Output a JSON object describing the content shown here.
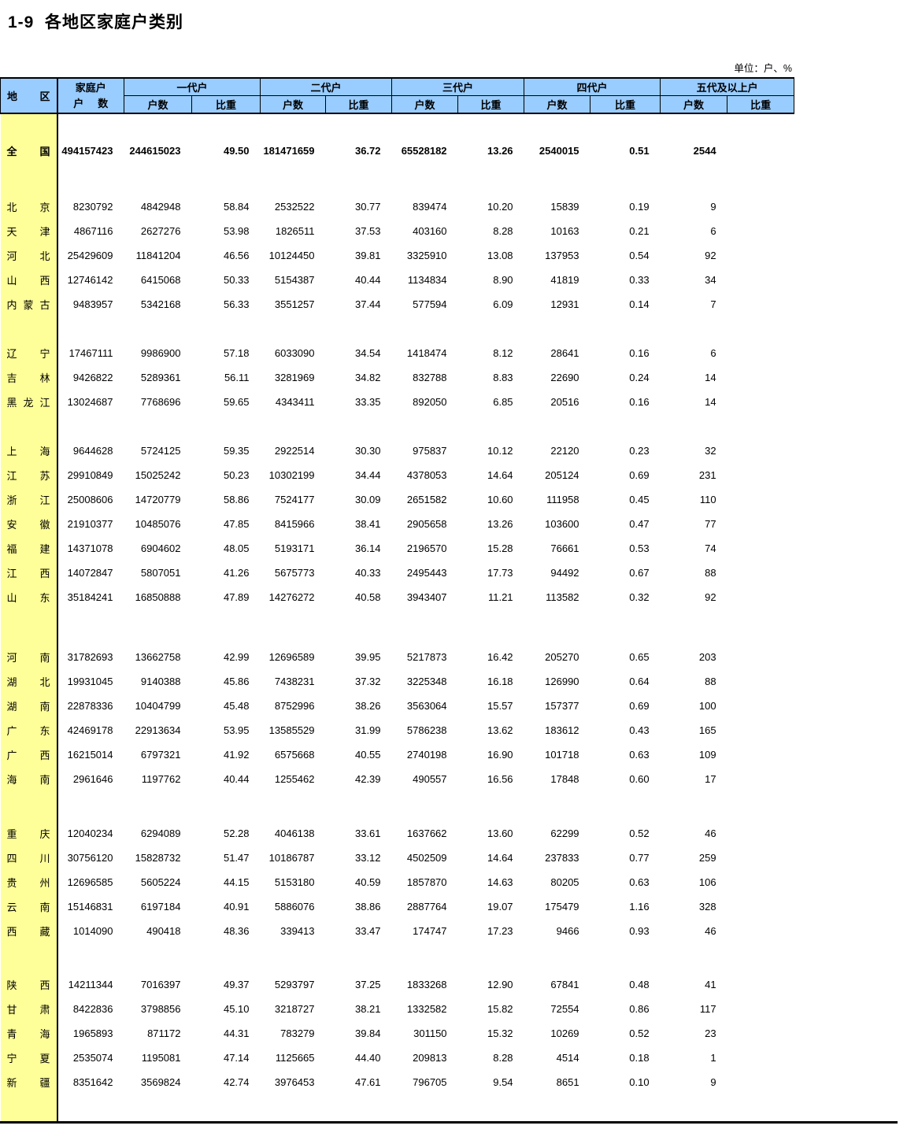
{
  "page": {
    "title": "1-9  各地区家庭户类别",
    "unit_note": "单位：户、%"
  },
  "table": {
    "header": {
      "region_label": "地区",
      "total_label_line1": "家庭户",
      "total_label_line2": "户数",
      "group_labels": [
        "一代户",
        "二代户",
        "三代户",
        "四代户",
        "五代及以上户"
      ],
      "count_label": "户数",
      "share_label": "比重"
    },
    "sections": [
      {
        "rows": [
          {
            "region": "全国",
            "emphasis": true,
            "values": [
              "494157423",
              "244615023",
              "49.50",
              "181471659",
              "36.72",
              "65528182",
              "13.26",
              "2540015",
              "0.51",
              "2544",
              ""
            ]
          }
        ]
      },
      {
        "rows": [
          {
            "region": "北京",
            "values": [
              "8230792",
              "4842948",
              "58.84",
              "2532522",
              "30.77",
              "839474",
              "10.20",
              "15839",
              "0.19",
              "9",
              ""
            ]
          },
          {
            "region": "天津",
            "values": [
              "4867116",
              "2627276",
              "53.98",
              "1826511",
              "37.53",
              "403160",
              "8.28",
              "10163",
              "0.21",
              "6",
              ""
            ]
          },
          {
            "region": "河北",
            "values": [
              "25429609",
              "11841204",
              "46.56",
              "10124450",
              "39.81",
              "3325910",
              "13.08",
              "137953",
              "0.54",
              "92",
              ""
            ]
          },
          {
            "region": "山西",
            "values": [
              "12746142",
              "6415068",
              "50.33",
              "5154387",
              "40.44",
              "1134834",
              "8.90",
              "41819",
              "0.33",
              "34",
              ""
            ]
          },
          {
            "region": "内蒙古",
            "values": [
              "9483957",
              "5342168",
              "56.33",
              "3551257",
              "37.44",
              "577594",
              "6.09",
              "12931",
              "0.14",
              "7",
              ""
            ]
          }
        ]
      },
      {
        "rows": [
          {
            "region": "辽宁",
            "values": [
              "17467111",
              "9986900",
              "57.18",
              "6033090",
              "34.54",
              "1418474",
              "8.12",
              "28641",
              "0.16",
              "6",
              ""
            ]
          },
          {
            "region": "吉林",
            "values": [
              "9426822",
              "5289361",
              "56.11",
              "3281969",
              "34.82",
              "832788",
              "8.83",
              "22690",
              "0.24",
              "14",
              ""
            ]
          },
          {
            "region": "黑龙江",
            "values": [
              "13024687",
              "7768696",
              "59.65",
              "4343411",
              "33.35",
              "892050",
              "6.85",
              "20516",
              "0.16",
              "14",
              ""
            ]
          }
        ]
      },
      {
        "rows": [
          {
            "region": "上海",
            "values": [
              "9644628",
              "5724125",
              "59.35",
              "2922514",
              "30.30",
              "975837",
              "10.12",
              "22120",
              "0.23",
              "32",
              ""
            ]
          },
          {
            "region": "江苏",
            "values": [
              "29910849",
              "15025242",
              "50.23",
              "10302199",
              "34.44",
              "4378053",
              "14.64",
              "205124",
              "0.69",
              "231",
              ""
            ]
          },
          {
            "region": "浙江",
            "values": [
              "25008606",
              "14720779",
              "58.86",
              "7524177",
              "30.09",
              "2651582",
              "10.60",
              "111958",
              "0.45",
              "110",
              ""
            ]
          },
          {
            "region": "安徽",
            "values": [
              "21910377",
              "10485076",
              "47.85",
              "8415966",
              "38.41",
              "2905658",
              "13.26",
              "103600",
              "0.47",
              "77",
              ""
            ]
          },
          {
            "region": "福建",
            "values": [
              "14371078",
              "6904602",
              "48.05",
              "5193171",
              "36.14",
              "2196570",
              "15.28",
              "76661",
              "0.53",
              "74",
              ""
            ]
          },
          {
            "region": "江西",
            "values": [
              "14072847",
              "5807051",
              "41.26",
              "5675773",
              "40.33",
              "2495443",
              "17.73",
              "94492",
              "0.67",
              "88",
              ""
            ]
          },
          {
            "region": "山东",
            "values": [
              "35184241",
              "16850888",
              "47.89",
              "14276272",
              "40.58",
              "3943407",
              "11.21",
              "113582",
              "0.32",
              "92",
              ""
            ]
          }
        ]
      },
      {
        "rows": [
          {
            "region": "河南",
            "values": [
              "31782693",
              "13662758",
              "42.99",
              "12696589",
              "39.95",
              "5217873",
              "16.42",
              "205270",
              "0.65",
              "203",
              ""
            ]
          },
          {
            "region": "湖北",
            "values": [
              "19931045",
              "9140388",
              "45.86",
              "7438231",
              "37.32",
              "3225348",
              "16.18",
              "126990",
              "0.64",
              "88",
              ""
            ]
          },
          {
            "region": "湖南",
            "values": [
              "22878336",
              "10404799",
              "45.48",
              "8752996",
              "38.26",
              "3563064",
              "15.57",
              "157377",
              "0.69",
              "100",
              ""
            ]
          },
          {
            "region": "广东",
            "values": [
              "42469178",
              "22913634",
              "53.95",
              "13585529",
              "31.99",
              "5786238",
              "13.62",
              "183612",
              "0.43",
              "165",
              ""
            ]
          },
          {
            "region": "广西",
            "values": [
              "16215014",
              "6797321",
              "41.92",
              "6575668",
              "40.55",
              "2740198",
              "16.90",
              "101718",
              "0.63",
              "109",
              ""
            ]
          },
          {
            "region": "海南",
            "values": [
              "2961646",
              "1197762",
              "40.44",
              "1255462",
              "42.39",
              "490557",
              "16.56",
              "17848",
              "0.60",
              "17",
              ""
            ]
          }
        ]
      },
      {
        "rows": [
          {
            "region": "重庆",
            "values": [
              "12040234",
              "6294089",
              "52.28",
              "4046138",
              "33.61",
              "1637662",
              "13.60",
              "62299",
              "0.52",
              "46",
              ""
            ]
          },
          {
            "region": "四川",
            "values": [
              "30756120",
              "15828732",
              "51.47",
              "10186787",
              "33.12",
              "4502509",
              "14.64",
              "237833",
              "0.77",
              "259",
              ""
            ]
          },
          {
            "region": "贵州",
            "values": [
              "12696585",
              "5605224",
              "44.15",
              "5153180",
              "40.59",
              "1857870",
              "14.63",
              "80205",
              "0.63",
              "106",
              ""
            ]
          },
          {
            "region": "云南",
            "values": [
              "15146831",
              "6197184",
              "40.91",
              "5886076",
              "38.86",
              "2887764",
              "19.07",
              "175479",
              "1.16",
              "328",
              ""
            ]
          },
          {
            "region": "西藏",
            "values": [
              "1014090",
              "490418",
              "48.36",
              "339413",
              "33.47",
              "174747",
              "17.23",
              "9466",
              "0.93",
              "46",
              ""
            ]
          }
        ]
      },
      {
        "rows": [
          {
            "region": "陕西",
            "values": [
              "14211344",
              "7016397",
              "49.37",
              "5293797",
              "37.25",
              "1833268",
              "12.90",
              "67841",
              "0.48",
              "41",
              ""
            ]
          },
          {
            "region": "甘肃",
            "values": [
              "8422836",
              "3798856",
              "45.10",
              "3218727",
              "38.21",
              "1332582",
              "15.82",
              "72554",
              "0.86",
              "117",
              ""
            ]
          },
          {
            "region": "青海",
            "values": [
              "1965893",
              "871172",
              "44.31",
              "783279",
              "39.84",
              "301150",
              "15.32",
              "10269",
              "0.52",
              "23",
              ""
            ]
          },
          {
            "region": "宁夏",
            "values": [
              "2535074",
              "1195081",
              "47.14",
              "1125665",
              "44.40",
              "209813",
              "8.28",
              "4514",
              "0.18",
              "1",
              ""
            ]
          },
          {
            "region": "新疆",
            "values": [
              "8351642",
              "3569824",
              "42.74",
              "3976453",
              "47.61",
              "796705",
              "9.54",
              "8651",
              "0.10",
              "9",
              ""
            ]
          }
        ]
      }
    ]
  }
}
